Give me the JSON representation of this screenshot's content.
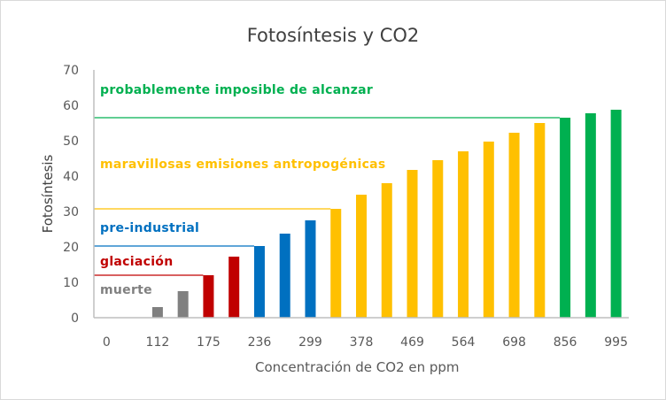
{
  "chart_data": {
    "type": "bar",
    "title": "Fotosíntesis y CO2",
    "xlabel": "Concentración de CO2 en ppm",
    "ylabel": "Fotosíntesis",
    "ylim": [
      0,
      70
    ],
    "yticks": [
      0,
      10,
      20,
      30,
      40,
      50,
      60,
      70
    ],
    "grid": false,
    "categories": [
      "0",
      "",
      "112",
      "",
      "175",
      "",
      "236",
      "",
      "299",
      "",
      "378",
      "",
      "469",
      "",
      "564",
      "",
      "698",
      "",
      "856",
      "",
      "995"
    ],
    "values": [
      0,
      0,
      3,
      7.5,
      12,
      17.25,
      20.25,
      23.75,
      27.5,
      30.75,
      34.75,
      38,
      41.75,
      44.5,
      47,
      49.75,
      52.25,
      55,
      56.5,
      57.75,
      58.75
    ],
    "bar_zones": [
      "muerte",
      "muerte",
      "muerte",
      "muerte",
      "glaciacion",
      "glaciacion",
      "preindustrial",
      "preindustrial",
      "preindustrial",
      "antropogenicas",
      "antropogenicas",
      "antropogenicas",
      "antropogenicas",
      "antropogenicas",
      "antropogenicas",
      "antropogenicas",
      "antropogenicas",
      "antropogenicas",
      "imposible",
      "imposible",
      "imposible"
    ],
    "zones": {
      "muerte": {
        "label": "muerte",
        "color": "#808080",
        "label_y": 8
      },
      "glaciacion": {
        "label": "glaciación",
        "color": "#c00000",
        "label_y": 16,
        "threshold": 12,
        "line_to_index": 4
      },
      "preindustrial": {
        "label": "pre-industrial",
        "color": "#0070c0",
        "label_y": 25.5,
        "threshold": 20.25,
        "line_to_index": 6
      },
      "antropogenicas": {
        "label": "maravillosas emisiones antropogénicas",
        "color": "#ffc000",
        "label_y": 43.5,
        "threshold": 30.75,
        "line_to_index": 9
      },
      "imposible": {
        "label": "probablemente imposible de alcanzar",
        "color": "#00b050",
        "label_y": 64.5,
        "threshold": 56.5,
        "line_to_index": 18
      }
    }
  }
}
